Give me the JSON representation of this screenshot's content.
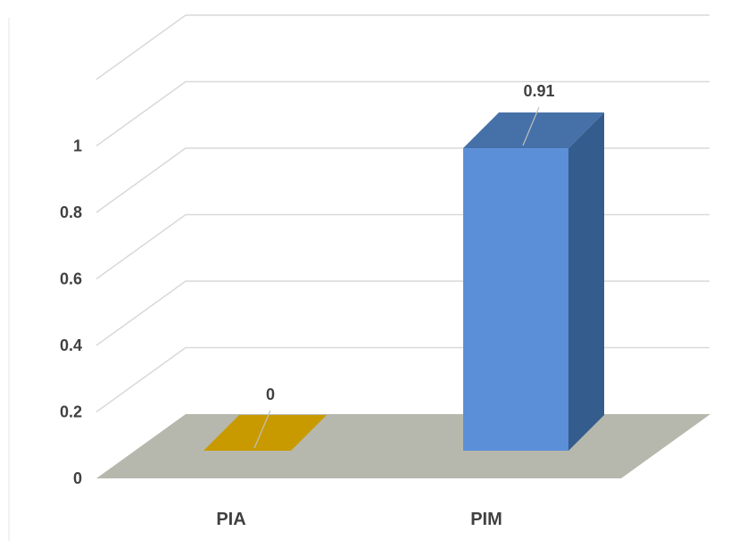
{
  "chart_data": {
    "type": "bar",
    "categories": [
      "PIA",
      "PIM"
    ],
    "values": [
      0,
      0.91
    ],
    "data_labels": [
      "0",
      "0.91"
    ],
    "y_ticks": [
      "0",
      "0.2",
      "0.4",
      "0.6",
      "0.8",
      "1"
    ],
    "ylim": [
      0,
      1.2
    ],
    "grid": true,
    "style": "3d-column",
    "colors": {
      "PIA": "#c99a00",
      "PIM": "#5b8fd8",
      "floor": "#b7b8ad",
      "grid": "#d9d9d9"
    }
  }
}
